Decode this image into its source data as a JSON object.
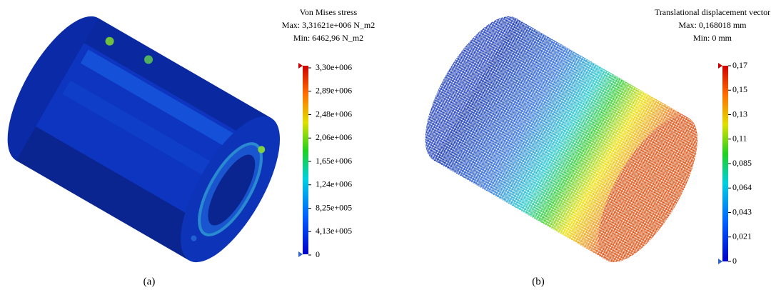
{
  "panels": [
    {
      "title_lines": [
        "Von Mises stress",
        "Max: 3,31621e+006 N_m2",
        "Min: 6462,96 N_m2"
      ],
      "legend_labels": [
        "3,30e+006",
        "2,89e+006",
        "2,48e+006",
        "2,06e+006",
        "1,65e+006",
        "1,24e+006",
        "8,25e+005",
        "4,13e+005",
        "0"
      ],
      "caption": "(a)"
    },
    {
      "title_lines": [
        "Translational displacement vector",
        "Max: 0,168018 mm",
        "Min: 0 mm"
      ],
      "legend_labels": [
        "0,17",
        "0,15",
        "0,13",
        "0,11",
        "0,085",
        "0,064",
        "0,043",
        "0,021",
        "0"
      ],
      "caption": "(b)"
    }
  ]
}
